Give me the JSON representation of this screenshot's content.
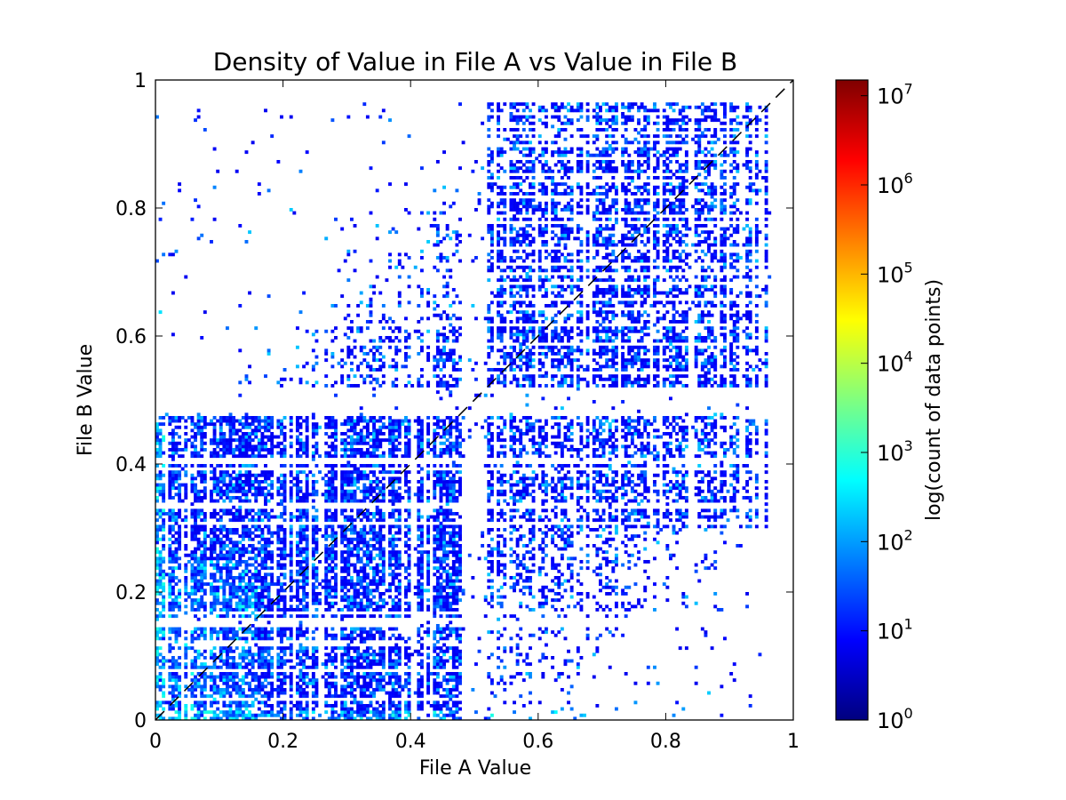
{
  "chart_data": {
    "type": "heatmap",
    "title": "Density of Value in File A vs Value in File B",
    "xlabel": "File A Value",
    "ylabel": "File B Value",
    "xlim": [
      0,
      1
    ],
    "ylim": [
      0,
      1
    ],
    "x_ticks": [
      0,
      0.2,
      0.4,
      0.6,
      0.8,
      1
    ],
    "y_ticks": [
      0,
      0.2,
      0.4,
      0.6,
      0.8,
      1
    ],
    "x_tick_labels": [
      "0",
      "0.2",
      "0.4",
      "0.6",
      "0.8",
      "1"
    ],
    "y_tick_labels": [
      "0",
      "0.2",
      "0.4",
      "0.6",
      "0.8",
      "1"
    ],
    "grid": false,
    "reference_line": {
      "style": "dashed",
      "color": "#000000",
      "from": [
        0,
        0
      ],
      "to": [
        1,
        1
      ]
    },
    "colorbar": {
      "label": "log(count of data points)",
      "scale": "log",
      "colormap": "jet",
      "range": [
        1,
        15000000
      ],
      "ticks": [
        1,
        10,
        100,
        1000,
        10000,
        100000,
        1000000,
        10000000
      ],
      "tick_labels": [
        {
          "base": "10",
          "exp": "0"
        },
        {
          "base": "10",
          "exp": "1"
        },
        {
          "base": "10",
          "exp": "2"
        },
        {
          "base": "10",
          "exp": "3"
        },
        {
          "base": "10",
          "exp": "4"
        },
        {
          "base": "10",
          "exp": "5"
        },
        {
          "base": "10",
          "exp": "6"
        },
        {
          "base": "10",
          "exp": "7"
        }
      ]
    },
    "bins": 200,
    "density_summary": {
      "empty_region": "upper-left (File A < ~0.5, File B > ~0.5) is sparse; lower-right (File A > ~0.6, File B < ~0.3) is sparse",
      "dense_regions": [
        {
          "x": [
            0.0,
            0.48
          ],
          "y": [
            0.0,
            0.48
          ],
          "level": "high"
        },
        {
          "x": [
            0.52,
            0.96
          ],
          "y": [
            0.52,
            0.96
          ],
          "level": "high"
        },
        {
          "x": [
            0.52,
            0.96
          ],
          "y": [
            0.3,
            0.5
          ],
          "level": "medium"
        },
        {
          "x": [
            0.2,
            0.48
          ],
          "y": [
            0.52,
            0.75
          ],
          "level": "medium"
        }
      ],
      "typical_count_range": [
        1,
        100
      ]
    }
  }
}
